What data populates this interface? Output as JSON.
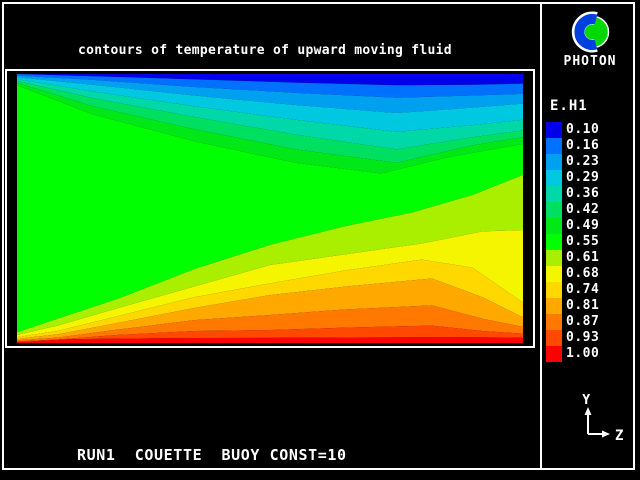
{
  "window": {
    "background": "#000000",
    "frame_color": "#FFFFFF"
  },
  "header": {
    "title": "contours of temperature of upward moving fluid"
  },
  "branding": {
    "app_name": "PHOTON",
    "logo_disc_color": "#00D800",
    "logo_ring_color": "#0040E0"
  },
  "legend": {
    "title": "E.H1",
    "values": [
      "0.10",
      "0.16",
      "0.23",
      "0.29",
      "0.36",
      "0.42",
      "0.49",
      "0.55",
      "0.61",
      "0.68",
      "0.74",
      "0.81",
      "0.87",
      "0.93",
      "1.00"
    ]
  },
  "footer": {
    "run_label": "RUN1  COUETTE  BUOY CONST=10"
  },
  "axes": {
    "vertical_label": "Y",
    "horizontal_label": "Z"
  },
  "chart_data": {
    "type": "heatmap",
    "subtype": "filled-contour",
    "title": "contours of temperature of upward moving fluid",
    "variable": "E.H1",
    "levels": [
      0.1,
      0.16,
      0.23,
      0.29,
      0.36,
      0.42,
      0.49,
      0.55,
      0.61,
      0.68,
      0.74,
      0.81,
      0.87,
      0.93,
      1.0
    ],
    "level_colors": [
      "#0000E8",
      "#0070FF",
      "#00A0F0",
      "#00C8E0",
      "#00D8A8",
      "#00E060",
      "#00E818",
      "#00FF00",
      "#AAEE00",
      "#F5F500",
      "#FFD800",
      "#FFA800",
      "#FF7800",
      "#FF4800",
      "#FF0000"
    ],
    "orientation": {
      "horizontal_axis": "Z",
      "vertical_axis": "Y"
    },
    "annotation": "RUN1  COUETTE  BUOY CONST=10",
    "description": "Temperature field of upward moving Couette flow: coldest band (0.10, blue) along the top wall, hottest (1.00, red) along the bottom wall; cool bands fan out from the top-left corner, warm bands fan out from the bottom-left corner, large 0.55 green region in the centre-left.",
    "field_size_norm": [
      100,
      100
    ],
    "band_boundaries_norm": [
      [
        [
          0,
          0
        ],
        [
          15,
          0.8
        ],
        [
          35,
          2
        ],
        [
          55,
          3.2
        ],
        [
          75,
          4.2
        ],
        [
          90,
          4
        ],
        [
          100,
          3.6
        ]
      ],
      [
        [
          0,
          0.6
        ],
        [
          15,
          2.2
        ],
        [
          35,
          4.8
        ],
        [
          55,
          7
        ],
        [
          75,
          8.8
        ],
        [
          90,
          8
        ],
        [
          100,
          7.4
        ]
      ],
      [
        [
          0,
          1.2
        ],
        [
          15,
          4
        ],
        [
          35,
          8
        ],
        [
          55,
          11.5
        ],
        [
          75,
          14.5
        ],
        [
          90,
          12.5
        ],
        [
          100,
          11
        ]
      ],
      [
        [
          0,
          1.9
        ],
        [
          15,
          6.5
        ],
        [
          35,
          12
        ],
        [
          55,
          17
        ],
        [
          75,
          21.5
        ],
        [
          90,
          19
        ],
        [
          100,
          17
        ]
      ],
      [
        [
          0,
          2.6
        ],
        [
          15,
          9
        ],
        [
          35,
          16
        ],
        [
          55,
          22.5
        ],
        [
          75,
          28
        ],
        [
          90,
          23.5
        ],
        [
          100,
          21
        ]
      ],
      [
        [
          0,
          3.3
        ],
        [
          15,
          12
        ],
        [
          35,
          20.5
        ],
        [
          55,
          28
        ],
        [
          75,
          33
        ],
        [
          90,
          26.5
        ],
        [
          100,
          23.5
        ]
      ],
      [
        [
          0,
          4.2
        ],
        [
          15,
          15
        ],
        [
          35,
          25
        ],
        [
          55,
          33
        ],
        [
          72,
          37
        ],
        [
          85,
          31
        ],
        [
          100,
          26
        ]
      ],
      [
        [
          0,
          96
        ],
        [
          8,
          91
        ],
        [
          20,
          83.5
        ],
        [
          35,
          72.5
        ],
        [
          50,
          63.5
        ],
        [
          65,
          56.5
        ],
        [
          78,
          51.5
        ],
        [
          90,
          45
        ],
        [
          100,
          37.5
        ]
      ],
      [
        [
          0,
          97
        ],
        [
          8,
          93.5
        ],
        [
          20,
          87
        ],
        [
          35,
          79
        ],
        [
          50,
          71
        ],
        [
          65,
          67
        ],
        [
          80,
          63
        ],
        [
          92,
          58.5
        ],
        [
          100,
          58
        ]
      ],
      [
        [
          0,
          97.8
        ],
        [
          8,
          95.5
        ],
        [
          20,
          90
        ],
        [
          35,
          83
        ],
        [
          50,
          77.8
        ],
        [
          65,
          73
        ],
        [
          80,
          69
        ],
        [
          90,
          72
        ],
        [
          100,
          85
        ]
      ],
      [
        [
          0,
          98.4
        ],
        [
          8,
          96.8
        ],
        [
          20,
          92.5
        ],
        [
          35,
          87
        ],
        [
          50,
          82.2
        ],
        [
          65,
          79
        ],
        [
          82,
          76
        ],
        [
          92,
          83
        ],
        [
          100,
          90.5
        ]
      ],
      [
        [
          0,
          99
        ],
        [
          8,
          98
        ],
        [
          20,
          95
        ],
        [
          35,
          91.5
        ],
        [
          50,
          89.6
        ],
        [
          65,
          87.5
        ],
        [
          82,
          86
        ],
        [
          92,
          91
        ],
        [
          100,
          94
        ]
      ],
      [
        [
          0,
          99.4
        ],
        [
          8,
          98.7
        ],
        [
          20,
          97
        ],
        [
          35,
          95.5
        ],
        [
          50,
          95.2
        ],
        [
          65,
          94.3
        ],
        [
          82,
          93.5
        ],
        [
          92,
          95.5
        ],
        [
          100,
          96.5
        ]
      ],
      [
        [
          0,
          99.7
        ],
        [
          10,
          98.6
        ],
        [
          30,
          98.2
        ],
        [
          60,
          98
        ],
        [
          85,
          97.8
        ],
        [
          100,
          98
        ]
      ]
    ]
  }
}
